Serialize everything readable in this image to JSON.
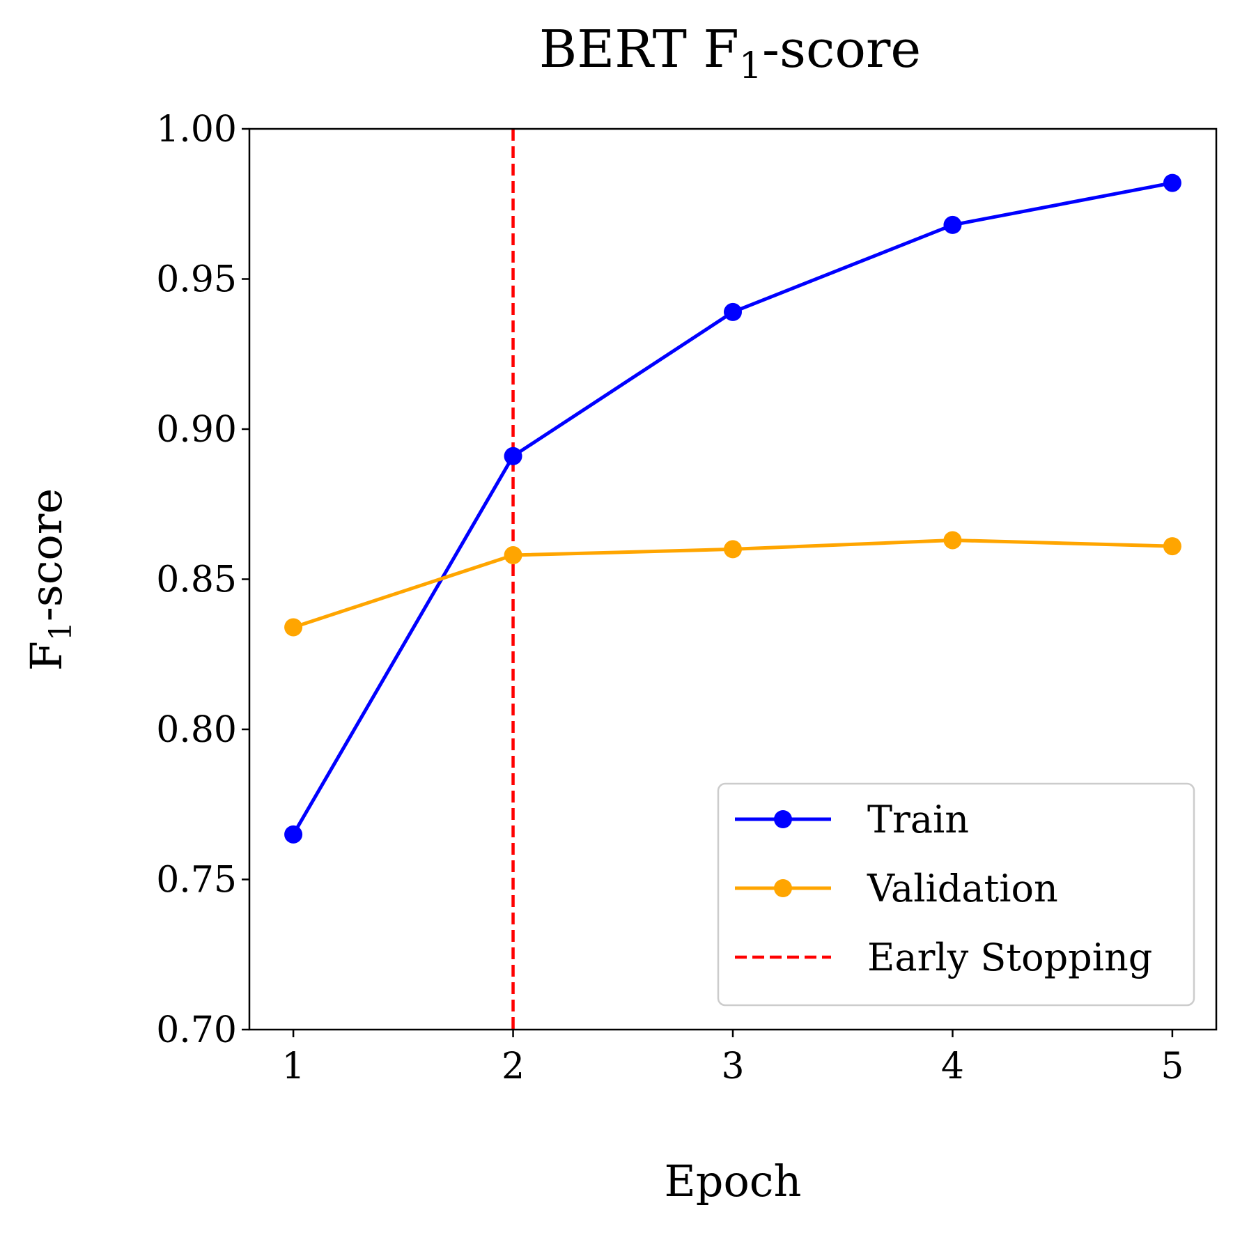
{
  "chart_data": {
    "type": "line",
    "title": {
      "main": "BERT F",
      "sub": "1",
      "rest": "-score"
    },
    "xlabel": "Epoch",
    "ylabel": {
      "main": "F",
      "sub": "1",
      "rest": "-score"
    },
    "x": [
      1,
      2,
      3,
      4,
      5
    ],
    "x_ticks": [
      "1",
      "2",
      "3",
      "4",
      "5"
    ],
    "xlim": [
      0.8,
      5.2
    ],
    "ylim": [
      0.7,
      1.0
    ],
    "y_ticks": [
      "0.70",
      "0.75",
      "0.80",
      "0.85",
      "0.90",
      "0.95",
      "1.00"
    ],
    "y_tick_values": [
      0.7,
      0.75,
      0.8,
      0.85,
      0.9,
      0.95,
      1.0
    ],
    "grid": false,
    "legend_position": "lower-right",
    "series": [
      {
        "name": "Train",
        "values": [
          0.765,
          0.891,
          0.939,
          0.968,
          0.982
        ],
        "color": "#0000ff",
        "marker": "circle"
      },
      {
        "name": "Validation",
        "values": [
          0.834,
          0.858,
          0.86,
          0.863,
          0.861
        ],
        "color": "#ffa500",
        "marker": "circle"
      }
    ],
    "vline": {
      "name": "Early Stopping",
      "x": 2,
      "color": "#ff0000",
      "style": "dashed"
    }
  }
}
